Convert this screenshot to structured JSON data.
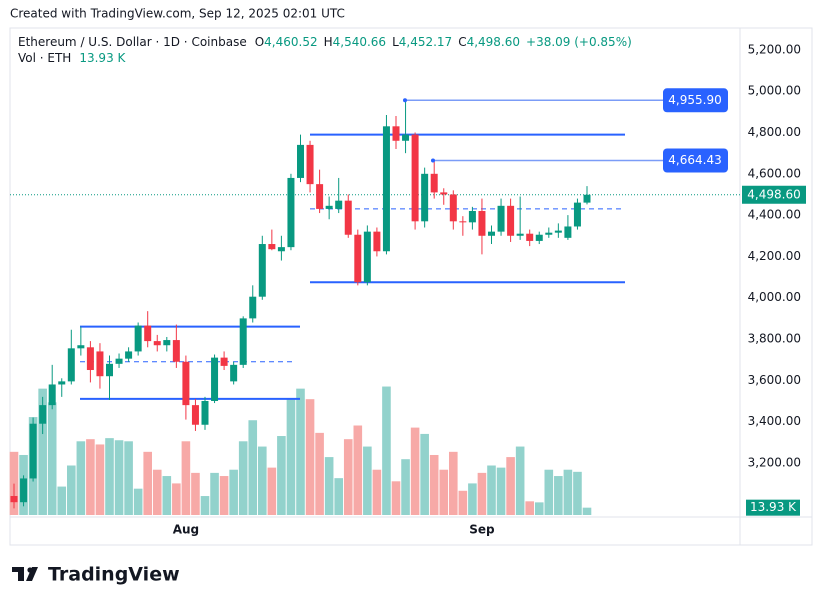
{
  "chart_data": {
    "type": "candlestick",
    "watermark": "Created with TradingView.com, Sep 12, 2025 02:01 UTC",
    "symbol": "Ethereum / U.S. Dollar · 1D · Coinbase",
    "ohlc_legend": [
      {
        "label": "O",
        "value": "4,460.52"
      },
      {
        "label": "H",
        "value": "4,540.66"
      },
      {
        "label": "L",
        "value": "4,452.17"
      },
      {
        "label": "C",
        "value": "4,498.60"
      }
    ],
    "change": "+38.09 (+0.85%)",
    "volume_title": "Vol · ETH",
    "brand": "TradingView",
    "categories": [
      null,
      null,
      null,
      null,
      null,
      null,
      null,
      null,
      null,
      null,
      null,
      null,
      null,
      null,
      null,
      null,
      null,
      null,
      "Aug",
      null,
      null,
      null,
      null,
      null,
      null,
      null,
      null,
      null,
      null,
      null,
      null,
      null,
      null,
      null,
      null,
      null,
      null,
      null,
      null,
      null,
      null,
      null,
      null,
      null,
      null,
      null,
      null,
      null,
      null,
      "Sep",
      null,
      null,
      null,
      null,
      null,
      null,
      null,
      null,
      null,
      null,
      null
    ],
    "open": [
      3040,
      3010,
      3125,
      3390,
      3480,
      3580,
      3595,
      3755,
      3760,
      3740,
      3620,
      3680,
      3705,
      3740,
      3865,
      3790,
      3770,
      3795,
      3690,
      3480,
      3385,
      3500,
      3710,
      3595,
      3675,
      3900,
      4005,
      4260,
      4225,
      4245,
      4580,
      4740,
      4550,
      4430,
      4430,
      4470,
      4305,
      4075,
      4320,
      4225,
      4830,
      4760,
      4790,
      4370,
      4600,
      4510,
      4500,
      4370,
      4365,
      4420,
      4300,
      4320,
      4445,
      4300,
      4310,
      4275,
      4305,
      4315,
      4290,
      4345,
      4460.52
    ],
    "high": [
      3100,
      3140,
      3420,
      3520,
      3675,
      3610,
      3845,
      3860,
      3790,
      3780,
      3720,
      3730,
      3760,
      3880,
      3935,
      3820,
      3810,
      3870,
      3720,
      3510,
      3520,
      3725,
      3740,
      3690,
      3910,
      4060,
      4300,
      4330,
      4300,
      4600,
      4790,
      4760,
      4620,
      4490,
      4580,
      4500,
      4330,
      4350,
      4340,
      4885,
      4880,
      4957,
      4800,
      4630,
      4664,
      4530,
      4520,
      4395,
      4440,
      4480,
      4350,
      4480,
      4480,
      4490,
      4330,
      4320,
      4340,
      4360,
      4400,
      4480,
      4540.66
    ],
    "low": [
      2980,
      2990,
      3110,
      3340,
      3460,
      3520,
      3580,
      3720,
      3590,
      3560,
      3505,
      3660,
      3690,
      3720,
      3760,
      3740,
      3740,
      3660,
      3410,
      3355,
      3360,
      3490,
      3650,
      3580,
      3660,
      3880,
      3990,
      4230,
      4180,
      4230,
      4560,
      4510,
      4410,
      4380,
      4410,
      4290,
      4060,
      4060,
      4200,
      4210,
      4720,
      4700,
      4330,
      4340,
      4480,
      4450,
      4330,
      4300,
      4330,
      4210,
      4260,
      4300,
      4270,
      4280,
      4250,
      4260,
      4290,
      4290,
      4280,
      4330,
      4452.17
    ],
    "close": [
      3010,
      3125,
      3390,
      3480,
      3580,
      3595,
      3755,
      3770,
      3650,
      3620,
      3680,
      3705,
      3740,
      3865,
      3790,
      3770,
      3795,
      3690,
      3480,
      3385,
      3500,
      3710,
      3670,
      3675,
      3900,
      4005,
      4260,
      4235,
      4245,
      4580,
      4740,
      4550,
      4430,
      4445,
      4470,
      4305,
      4075,
      4320,
      4225,
      4830,
      4760,
      4790,
      4370,
      4600,
      4510,
      4500,
      4370,
      4365,
      4420,
      4300,
      4320,
      4445,
      4300,
      4310,
      4275,
      4305,
      4315,
      4325,
      4345,
      4460.52,
      4498.6
    ],
    "volume": [
      120,
      114,
      186,
      240,
      214,
      54,
      94,
      140,
      144,
      134,
      146,
      142,
      140,
      50,
      120,
      86,
      74,
      60,
      140,
      80,
      36,
      80,
      74,
      86,
      140,
      180,
      130,
      90,
      150,
      220,
      240,
      220,
      156,
      110,
      70,
      144,
      170,
      130,
      86,
      244,
      64,
      106,
      166,
      154,
      114,
      86,
      120,
      46,
      60,
      80,
      94,
      90,
      110,
      130,
      26,
      24,
      86,
      74,
      86,
      82,
      13.93
    ],
    "last_volume": {
      "value": 13.93,
      "label": "13.93 K"
    },
    "last_price": {
      "value": 4498.6,
      "label": "4,498.60"
    },
    "up_color": "#089981",
    "down_color": "#f23645",
    "up_volume_color": "#92d2cc",
    "down_volume_color": "#f7a9a7",
    "ylim": [
      2948,
      5306
    ],
    "volume_lim": [
      0,
      925
    ],
    "yticks": [
      {
        "value": 3200,
        "label": "3,200.00"
      },
      {
        "value": 3400,
        "label": "3,400.00"
      },
      {
        "value": 3600,
        "label": "3,600.00"
      },
      {
        "value": 3800,
        "label": "3,800.00"
      },
      {
        "value": 4000,
        "label": "4,000.00"
      },
      {
        "value": 4200,
        "label": "4,200.00"
      },
      {
        "value": 4400,
        "label": "4,400.00"
      },
      {
        "value": 4600,
        "label": "4,600.00"
      },
      {
        "value": 4800,
        "label": "4,800.00"
      },
      {
        "value": 5000,
        "label": "5,000.00"
      },
      {
        "value": 5200,
        "label": "5,200.00"
      }
    ],
    "grid": false,
    "levels": [
      {
        "value": 3860,
        "style": "solid"
      },
      {
        "value": 3690,
        "style": "dashed"
      },
      {
        "value": 3510,
        "style": "solid"
      },
      {
        "value": 4790,
        "style": "solid"
      },
      {
        "value": 4430,
        "style": "dashed"
      },
      {
        "value": 4075,
        "style": "solid"
      }
    ],
    "rays": [
      {
        "value": 4955.9,
        "label": "4,955.90"
      },
      {
        "value": 4664.43,
        "label": "4,664.43"
      }
    ]
  }
}
